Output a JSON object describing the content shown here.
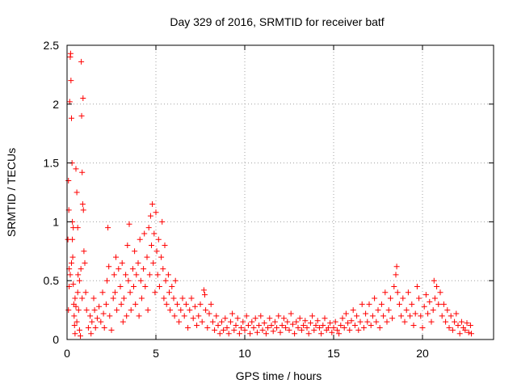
{
  "chart_data": {
    "type": "scatter",
    "title": "Day 329 of 2016, SRMTID for receiver batf",
    "xlabel": "GPS time / hours",
    "ylabel": "SRMTID / TECUs",
    "xlim": [
      0,
      24
    ],
    "ylim": [
      0,
      2.5
    ],
    "xticks": [
      0,
      5,
      10,
      15,
      20
    ],
    "xtick_labels": [
      "0",
      "5",
      "10",
      "15",
      "20"
    ],
    "yticks": [
      0,
      0.5,
      1,
      1.5,
      2,
      2.5
    ],
    "ytick_labels": [
      "0",
      "0.5",
      "1",
      "1.5",
      "2",
      "2.5"
    ],
    "grid": true,
    "marker": "+",
    "color": "#ff0000",
    "series": [
      {
        "name": "SRMTID",
        "points": [
          [
            0.05,
            0.85
          ],
          [
            0.08,
            1.35
          ],
          [
            0.1,
            1.1
          ],
          [
            0.12,
            0.6
          ],
          [
            0.15,
            2.02
          ],
          [
            0.18,
            2.4
          ],
          [
            0.2,
            2.43
          ],
          [
            0.22,
            2.2
          ],
          [
            0.25,
            1.88
          ],
          [
            0.28,
            1.5
          ],
          [
            0.3,
            1.0
          ],
          [
            0.32,
            0.7
          ],
          [
            0.35,
            0.47
          ],
          [
            0.38,
            0.3
          ],
          [
            0.4,
            0.2
          ],
          [
            0.42,
            0.12
          ],
          [
            0.45,
            0.05
          ],
          [
            0.5,
            1.45
          ],
          [
            0.55,
            1.25
          ],
          [
            0.6,
            0.95
          ],
          [
            0.62,
            0.55
          ],
          [
            0.7,
            0.08
          ],
          [
            0.75,
            0.03
          ],
          [
            0.8,
            2.36
          ],
          [
            0.82,
            1.9
          ],
          [
            0.85,
            1.42
          ],
          [
            0.88,
            1.15
          ],
          [
            0.9,
            2.05
          ],
          [
            0.92,
            1.1
          ],
          [
            0.95,
            0.75
          ],
          [
            1.0,
            0.65
          ],
          [
            1.05,
            0.4
          ],
          [
            1.1,
            0.25
          ],
          [
            0.08,
            0.25
          ],
          [
            0.12,
            0.45
          ],
          [
            0.18,
            0.55
          ],
          [
            0.25,
            0.65
          ],
          [
            0.3,
            0.85
          ],
          [
            0.35,
            0.95
          ],
          [
            0.45,
            0.35
          ],
          [
            0.5,
            0.28
          ],
          [
            0.55,
            0.15
          ],
          [
            0.6,
            0.4
          ],
          [
            0.65,
            0.25
          ],
          [
            0.7,
            0.5
          ],
          [
            0.78,
            0.6
          ],
          [
            0.85,
            0.35
          ],
          [
            1.2,
            0.1
          ],
          [
            1.3,
            0.2
          ],
          [
            1.35,
            0.05
          ],
          [
            1.4,
            0.15
          ],
          [
            1.5,
            0.35
          ],
          [
            1.55,
            0.25
          ],
          [
            1.6,
            0.1
          ],
          [
            1.7,
            0.18
          ],
          [
            1.8,
            0.28
          ],
          [
            1.9,
            0.15
          ],
          [
            2.0,
            0.4
          ],
          [
            2.05,
            0.22
          ],
          [
            2.1,
            0.1
          ],
          [
            2.2,
            0.3
          ],
          [
            2.25,
            0.5
          ],
          [
            2.3,
            0.95
          ],
          [
            2.35,
            0.62
          ],
          [
            2.4,
            0.2
          ],
          [
            2.5,
            0.08
          ],
          [
            2.6,
            0.35
          ],
          [
            2.65,
            0.55
          ],
          [
            2.7,
            0.4
          ],
          [
            2.75,
            0.7
          ],
          [
            2.8,
            0.25
          ],
          [
            2.9,
            0.6
          ],
          [
            3.0,
            0.45
          ],
          [
            3.05,
            0.3
          ],
          [
            3.1,
            0.65
          ],
          [
            3.15,
            0.15
          ],
          [
            3.2,
            0.35
          ],
          [
            3.3,
            0.55
          ],
          [
            3.35,
            0.2
          ],
          [
            3.4,
            0.8
          ],
          [
            3.45,
            0.5
          ],
          [
            3.5,
            0.98
          ],
          [
            3.55,
            0.4
          ],
          [
            3.6,
            0.25
          ],
          [
            3.7,
            0.6
          ],
          [
            3.75,
            0.45
          ],
          [
            3.8,
            0.75
          ],
          [
            3.85,
            0.3
          ],
          [
            3.9,
            0.55
          ],
          [
            4.0,
            0.65
          ],
          [
            4.05,
            0.2
          ],
          [
            4.1,
            0.85
          ],
          [
            4.15,
            0.5
          ],
          [
            4.2,
            0.35
          ],
          [
            4.3,
            0.6
          ],
          [
            4.35,
            0.9
          ],
          [
            4.4,
            0.45
          ],
          [
            4.5,
            0.7
          ],
          [
            4.55,
            0.25
          ],
          [
            4.6,
            0.95
          ],
          [
            4.65,
            0.55
          ],
          [
            4.7,
            1.05
          ],
          [
            4.75,
            0.8
          ],
          [
            4.8,
            1.15
          ],
          [
            4.85,
            0.65
          ],
          [
            4.9,
            0.9
          ],
          [
            4.95,
            0.4
          ],
          [
            5.0,
            1.08
          ],
          [
            5.05,
            0.75
          ],
          [
            5.1,
            0.55
          ],
          [
            5.15,
            0.85
          ],
          [
            5.2,
            0.45
          ],
          [
            5.3,
            0.7
          ],
          [
            5.35,
            1.0
          ],
          [
            5.4,
            0.6
          ],
          [
            5.45,
            0.35
          ],
          [
            5.5,
            0.8
          ],
          [
            5.55,
            0.5
          ],
          [
            5.6,
            0.3
          ],
          [
            5.7,
            0.55
          ],
          [
            5.75,
            0.4
          ],
          [
            5.8,
            0.25
          ],
          [
            5.9,
            0.45
          ],
          [
            6.0,
            0.35
          ],
          [
            6.05,
            0.2
          ],
          [
            6.1,
            0.5
          ],
          [
            6.2,
            0.3
          ],
          [
            6.3,
            0.15
          ],
          [
            6.4,
            0.25
          ],
          [
            6.5,
            0.35
          ],
          [
            6.6,
            0.2
          ],
          [
            6.7,
            0.3
          ],
          [
            6.8,
            0.1
          ],
          [
            6.9,
            0.25
          ],
          [
            7.0,
            0.35
          ],
          [
            7.1,
            0.18
          ],
          [
            7.2,
            0.28
          ],
          [
            7.3,
            0.12
          ],
          [
            7.4,
            0.2
          ],
          [
            7.5,
            0.3
          ],
          [
            7.6,
            0.15
          ],
          [
            7.7,
            0.42
          ],
          [
            7.75,
            0.38
          ],
          [
            7.8,
            0.25
          ],
          [
            7.9,
            0.1
          ],
          [
            8.0,
            0.22
          ],
          [
            8.1,
            0.3
          ],
          [
            8.2,
            0.15
          ],
          [
            8.3,
            0.08
          ],
          [
            8.4,
            0.2
          ],
          [
            8.5,
            0.12
          ],
          [
            8.6,
            0.05
          ],
          [
            8.7,
            0.15
          ],
          [
            8.8,
            0.08
          ],
          [
            8.9,
            0.18
          ],
          [
            9.0,
            0.1
          ],
          [
            9.1,
            0.05
          ],
          [
            9.2,
            0.15
          ],
          [
            9.3,
            0.22
          ],
          [
            9.4,
            0.08
          ],
          [
            9.5,
            0.12
          ],
          [
            9.6,
            0.18
          ],
          [
            9.7,
            0.05
          ],
          [
            9.8,
            0.1
          ],
          [
            9.9,
            0.15
          ],
          [
            10.0,
            0.08
          ],
          [
            10.1,
            0.2
          ],
          [
            10.2,
            0.12
          ],
          [
            10.3,
            0.05
          ],
          [
            10.4,
            0.15
          ],
          [
            10.5,
            0.1
          ],
          [
            10.6,
            0.18
          ],
          [
            10.7,
            0.06
          ],
          [
            10.8,
            0.12
          ],
          [
            10.9,
            0.2
          ],
          [
            11.0,
            0.08
          ],
          [
            11.1,
            0.14
          ],
          [
            11.2,
            0.05
          ],
          [
            11.3,
            0.1
          ],
          [
            11.4,
            0.18
          ],
          [
            11.5,
            0.12
          ],
          [
            11.6,
            0.07
          ],
          [
            11.7,
            0.15
          ],
          [
            11.8,
            0.1
          ],
          [
            11.9,
            0.2
          ],
          [
            12.0,
            0.06
          ],
          [
            12.1,
            0.12
          ],
          [
            12.2,
            0.18
          ],
          [
            12.3,
            0.1
          ],
          [
            12.4,
            0.15
          ],
          [
            12.5,
            0.08
          ],
          [
            12.6,
            0.22
          ],
          [
            12.7,
            0.13
          ],
          [
            12.8,
            0.05
          ],
          [
            12.9,
            0.15
          ],
          [
            13.0,
            0.1
          ],
          [
            13.1,
            0.18
          ],
          [
            13.2,
            0.08
          ],
          [
            13.3,
            0.12
          ],
          [
            13.4,
            0.16
          ],
          [
            13.5,
            0.1
          ],
          [
            13.6,
            0.05
          ],
          [
            13.7,
            0.14
          ],
          [
            13.8,
            0.2
          ],
          [
            13.9,
            0.08
          ],
          [
            14.0,
            0.12
          ],
          [
            14.1,
            0.16
          ],
          [
            14.2,
            0.1
          ],
          [
            14.3,
            0.05
          ],
          [
            14.4,
            0.12
          ],
          [
            14.5,
            0.18
          ],
          [
            14.6,
            0.08
          ],
          [
            14.7,
            0.1
          ],
          [
            14.8,
            0.14
          ],
          [
            14.9,
            0.06
          ],
          [
            15.0,
            0.1
          ],
          [
            15.1,
            0.15
          ],
          [
            15.2,
            0.08
          ],
          [
            15.3,
            0.05
          ],
          [
            15.4,
            0.12
          ],
          [
            15.5,
            0.18
          ],
          [
            15.6,
            0.1
          ],
          [
            15.7,
            0.22
          ],
          [
            15.8,
            0.14
          ],
          [
            15.9,
            0.08
          ],
          [
            16.0,
            0.16
          ],
          [
            16.1,
            0.25
          ],
          [
            16.2,
            0.12
          ],
          [
            16.3,
            0.2
          ],
          [
            16.4,
            0.08
          ],
          [
            16.5,
            0.15
          ],
          [
            16.6,
            0.3
          ],
          [
            16.7,
            0.1
          ],
          [
            16.8,
            0.22
          ],
          [
            16.9,
            0.15
          ],
          [
            17.0,
            0.3
          ],
          [
            17.1,
            0.12
          ],
          [
            17.2,
            0.2
          ],
          [
            17.3,
            0.35
          ],
          [
            17.4,
            0.15
          ],
          [
            17.5,
            0.25
          ],
          [
            17.6,
            0.1
          ],
          [
            17.7,
            0.3
          ],
          [
            17.8,
            0.2
          ],
          [
            17.9,
            0.4
          ],
          [
            18.0,
            0.15
          ],
          [
            18.1,
            0.25
          ],
          [
            18.2,
            0.35
          ],
          [
            18.3,
            0.18
          ],
          [
            18.4,
            0.45
          ],
          [
            18.5,
            0.55
          ],
          [
            18.55,
            0.62
          ],
          [
            18.6,
            0.4
          ],
          [
            18.7,
            0.3
          ],
          [
            18.8,
            0.2
          ],
          [
            18.9,
            0.35
          ],
          [
            19.0,
            0.15
          ],
          [
            19.1,
            0.25
          ],
          [
            19.2,
            0.4
          ],
          [
            19.3,
            0.2
          ],
          [
            19.4,
            0.3
          ],
          [
            19.5,
            0.12
          ],
          [
            19.6,
            0.22
          ],
          [
            19.7,
            0.45
          ],
          [
            19.8,
            0.35
          ],
          [
            19.9,
            0.2
          ],
          [
            20.0,
            0.1
          ],
          [
            20.1,
            0.28
          ],
          [
            20.2,
            0.38
          ],
          [
            20.3,
            0.22
          ],
          [
            20.4,
            0.32
          ],
          [
            20.5,
            0.15
          ],
          [
            20.6,
            0.25
          ],
          [
            20.65,
            0.5
          ],
          [
            20.7,
            0.35
          ],
          [
            20.8,
            0.45
          ],
          [
            20.9,
            0.3
          ],
          [
            21.0,
            0.4
          ],
          [
            21.1,
            0.2
          ],
          [
            21.2,
            0.3
          ],
          [
            21.3,
            0.15
          ],
          [
            21.4,
            0.25
          ],
          [
            21.5,
            0.1
          ],
          [
            21.6,
            0.2
          ],
          [
            21.7,
            0.08
          ],
          [
            21.8,
            0.15
          ],
          [
            21.9,
            0.22
          ],
          [
            22.0,
            0.12
          ],
          [
            22.1,
            0.05
          ],
          [
            22.2,
            0.15
          ],
          [
            22.3,
            0.1
          ],
          [
            22.4,
            0.08
          ],
          [
            22.5,
            0.14
          ],
          [
            22.6,
            0.06
          ],
          [
            22.7,
            0.12
          ],
          [
            22.75,
            0.05
          ]
        ]
      }
    ]
  }
}
